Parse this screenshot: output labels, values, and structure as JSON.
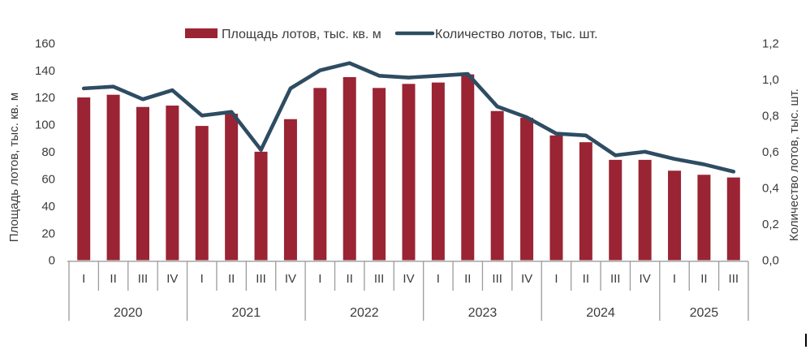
{
  "colors": {
    "bar": "#9A2433",
    "line": "#2E4C62",
    "axis_line": "#9C9C9C",
    "text": "#3B3B3B"
  },
  "legend": {
    "items": [
      {
        "label": "Площадь лотов, тыс. кв. м",
        "swatch": "bar-swatch",
        "color": "#9A2433"
      },
      {
        "label": "Количество лотов, тыс. шт.",
        "swatch": "line-swatch",
        "color": "#2E4C62"
      }
    ]
  },
  "left_axis": {
    "title": "Площадь лотов, тыс. кв. м",
    "tick_labels": [
      "0",
      "20",
      "40",
      "60",
      "80",
      "100",
      "120",
      "140",
      "160"
    ],
    "min": 0,
    "max": 160,
    "step": 20
  },
  "right_axis": {
    "title": "Количество лотов, тыс. шт.",
    "tick_labels": [
      "0,0",
      "0,2",
      "0,4",
      "0,6",
      "0,8",
      "1,0",
      "1,2"
    ],
    "min": 0,
    "max": 1.2,
    "step": 0.2
  },
  "x_axis": {
    "groups": [
      {
        "year": "2020",
        "quarters": [
          "I",
          "II",
          "III",
          "IV"
        ]
      },
      {
        "year": "2021",
        "quarters": [
          "I",
          "II",
          "III",
          "IV"
        ]
      },
      {
        "year": "2022",
        "quarters": [
          "I",
          "II",
          "III",
          "IV"
        ]
      },
      {
        "year": "2023",
        "quarters": [
          "I",
          "II",
          "III",
          "IV"
        ]
      },
      {
        "year": "2024",
        "quarters": [
          "I",
          "II",
          "III",
          "IV"
        ]
      },
      {
        "year": "2025",
        "quarters": [
          "I",
          "II",
          "III"
        ]
      }
    ]
  },
  "chart_data": {
    "type": "bar",
    "subtype": "combo-bar-line-dual-axis",
    "title": "",
    "legend_position": "top",
    "grid": false,
    "categories": [
      "2020 I",
      "2020 II",
      "2020 III",
      "2020 IV",
      "2021 I",
      "2021 II",
      "2021 III",
      "2021 IV",
      "2022 I",
      "2022 II",
      "2022 III",
      "2022 IV",
      "2023 I",
      "2023 II",
      "2023 III",
      "2023 IV",
      "2024 I",
      "2024 II",
      "2024 III",
      "2024 IV",
      "2025 I",
      "2025 II",
      "2025 III"
    ],
    "left_ylim": [
      0,
      160
    ],
    "right_ylim": [
      0,
      1.2
    ],
    "series": [
      {
        "name": "Площадь лотов, тыс. кв. м",
        "chart": "bar",
        "axis": "left",
        "color": "#9A2433",
        "values": [
          120,
          122,
          113,
          114,
          99,
          108,
          80,
          104,
          127,
          135,
          127,
          130,
          131,
          137,
          110,
          105,
          92,
          87,
          74,
          74,
          66,
          63,
          61
        ]
      },
      {
        "name": "Количество лотов, тыс. шт.",
        "chart": "line",
        "axis": "right",
        "color": "#2E4C62",
        "values": [
          0.95,
          0.96,
          0.89,
          0.94,
          0.8,
          0.82,
          0.61,
          0.95,
          1.05,
          1.09,
          1.02,
          1.01,
          1.02,
          1.03,
          0.85,
          0.79,
          0.7,
          0.69,
          0.58,
          0.6,
          0.56,
          0.53,
          0.49
        ]
      }
    ]
  }
}
